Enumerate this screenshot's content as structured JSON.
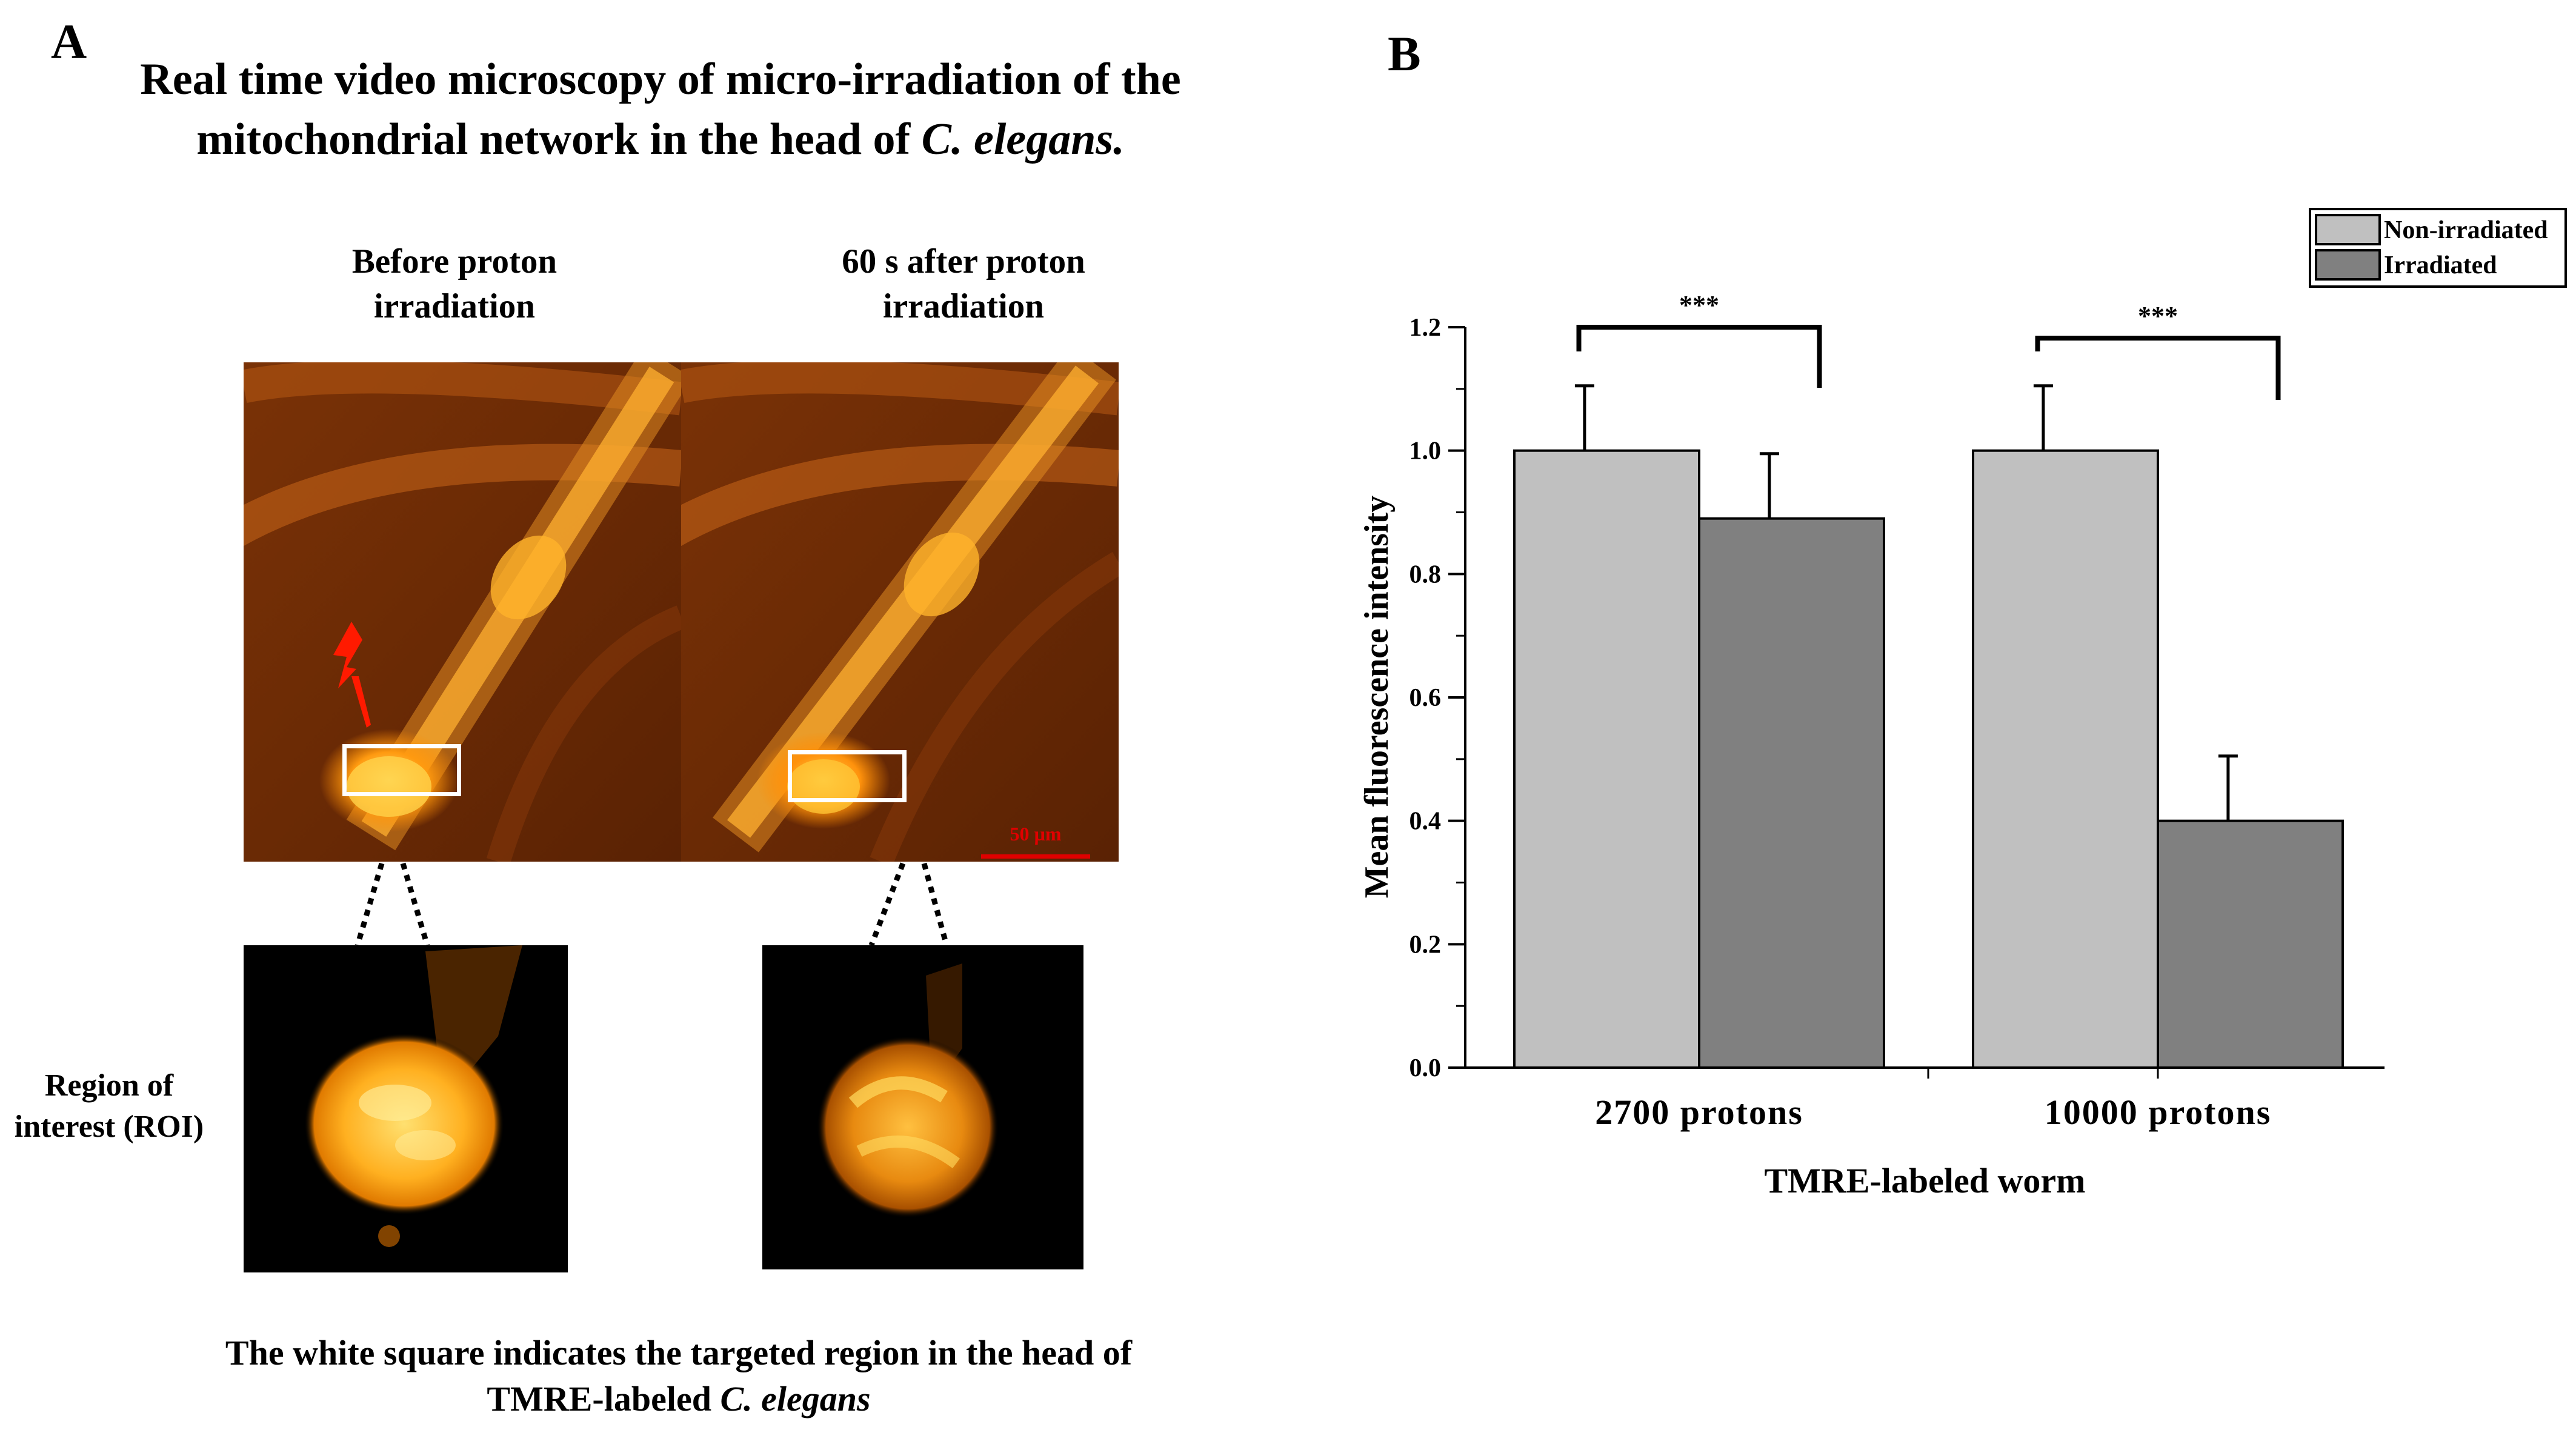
{
  "panel_a": {
    "letter": "A",
    "title_line1": "Real time video microscopy of micro-irradiation of the",
    "title_line2_prefix": "mitochondrial network in the head of",
    "title_line2_italic": "C. elegans.",
    "before_label_line1": "Before proton",
    "before_label_line2": "irradiation",
    "after_label_line1": "60 s after proton",
    "after_label_line2": "irradiation",
    "scale_bar_label": "50 µm",
    "roi_label_line1": "Region of",
    "roi_label_line2": "interest (ROI)",
    "caption_line1": "The white square indicates the targeted region in the head of",
    "caption_line2_prefix": "TMRE-labeled",
    "caption_line2_italic": "C. elegans",
    "lightning_icon": "lightning-bolt-icon",
    "colors": {
      "tissue_bg": "#6b2a04",
      "glow": "#ffb01e",
      "roi_bg": "#000000",
      "lightning": "#ff1a00",
      "scale_bar": "#e00000"
    }
  },
  "panel_b": {
    "letter": "B"
  },
  "chart_data": {
    "type": "bar",
    "categories": [
      "2700 protons",
      "10000 protons"
    ],
    "series": [
      {
        "name": "Non-irradiated",
        "values": [
          1.0,
          1.0
        ],
        "errors": [
          0.105,
          0.105
        ],
        "color": "#c0c0c0"
      },
      {
        "name": "Irradiated",
        "values": [
          0.89,
          0.4
        ],
        "errors": [
          0.105,
          0.105
        ],
        "color": "#808080"
      }
    ],
    "xlabel": "TMRE-labeled worm",
    "ylabel": "Mean fluorescence intensity",
    "ylim": [
      0,
      1.2
    ],
    "yticks": [
      "0.0",
      "0.2",
      "0.4",
      "0.6",
      "0.8",
      "1.0",
      "1.2"
    ],
    "significance": [
      "***",
      "***"
    ],
    "legend_position": "top-right",
    "grid": false
  }
}
